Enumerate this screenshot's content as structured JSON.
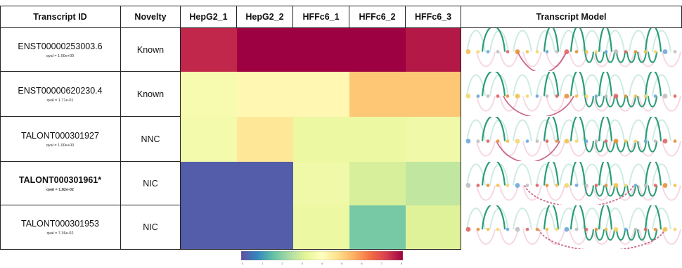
{
  "headers": {
    "transcript_id": "Transcript ID",
    "novelty": "Novelty",
    "samples": [
      "HepG2_1",
      "HepG2_2",
      "HFFc6_1",
      "HFFc6_2",
      "HFFc6_3"
    ],
    "model": "Transcript Model"
  },
  "rows": [
    {
      "id": "ENST00000253003.6",
      "qval": "qval = 1.00e+00",
      "novelty": "Known",
      "bold": false
    },
    {
      "id": "ENST00000620230.4",
      "qval": "qval = 1.71e-01",
      "novelty": "Known",
      "bold": false
    },
    {
      "id": "TALONT000301927",
      "qval": "qval = 1.00e+00",
      "novelty": "NNC",
      "bold": false
    },
    {
      "id": "TALONT000301961*",
      "qval": "qval = 1.82e-02",
      "novelty": "NIC",
      "bold": true
    },
    {
      "id": "TALONT000301953",
      "qval": "qval = 7.36e-02",
      "novelty": "NIC",
      "bold": false
    }
  ],
  "chart_data": {
    "type": "heatmap",
    "columns": [
      "HepG2_1",
      "HepG2_2",
      "HFFc6_1",
      "HFFc6_2",
      "HFFc6_3"
    ],
    "rows": [
      "ENST00000253003.6",
      "ENST00000620230.4",
      "TALONT000301927",
      "TALONT000301961*",
      "TALONT000301953"
    ],
    "values": [
      [
        7.5,
        8.0,
        8.0,
        8.0,
        7.7
      ],
      [
        3.7,
        4.2,
        4.2,
        5.2,
        5.2
      ],
      [
        3.6,
        4.6,
        3.4,
        3.4,
        3.5
      ],
      [
        0.2,
        0.2,
        3.5,
        3.0,
        2.7
      ],
      [
        0.2,
        0.2,
        3.4,
        1.8,
        3.1
      ]
    ],
    "colorbar": {
      "min": 0,
      "max": 8,
      "ticks": [
        "0",
        "1",
        "2",
        "3",
        "4",
        "5",
        "6",
        "7",
        "8"
      ],
      "colormap": "Spectral (reversed)"
    },
    "colors": {
      "c0": "#5e4fa2",
      "c1": "#3288bd",
      "c2": "#66c2a5",
      "c3": "#abdda4",
      "c4": "#e6f598",
      "c5": "#ffffbf",
      "c6": "#fee08b",
      "c7": "#fdae61",
      "c8": "#f46d43",
      "c9": "#d53e4f",
      "c10": "#9e0142"
    }
  }
}
